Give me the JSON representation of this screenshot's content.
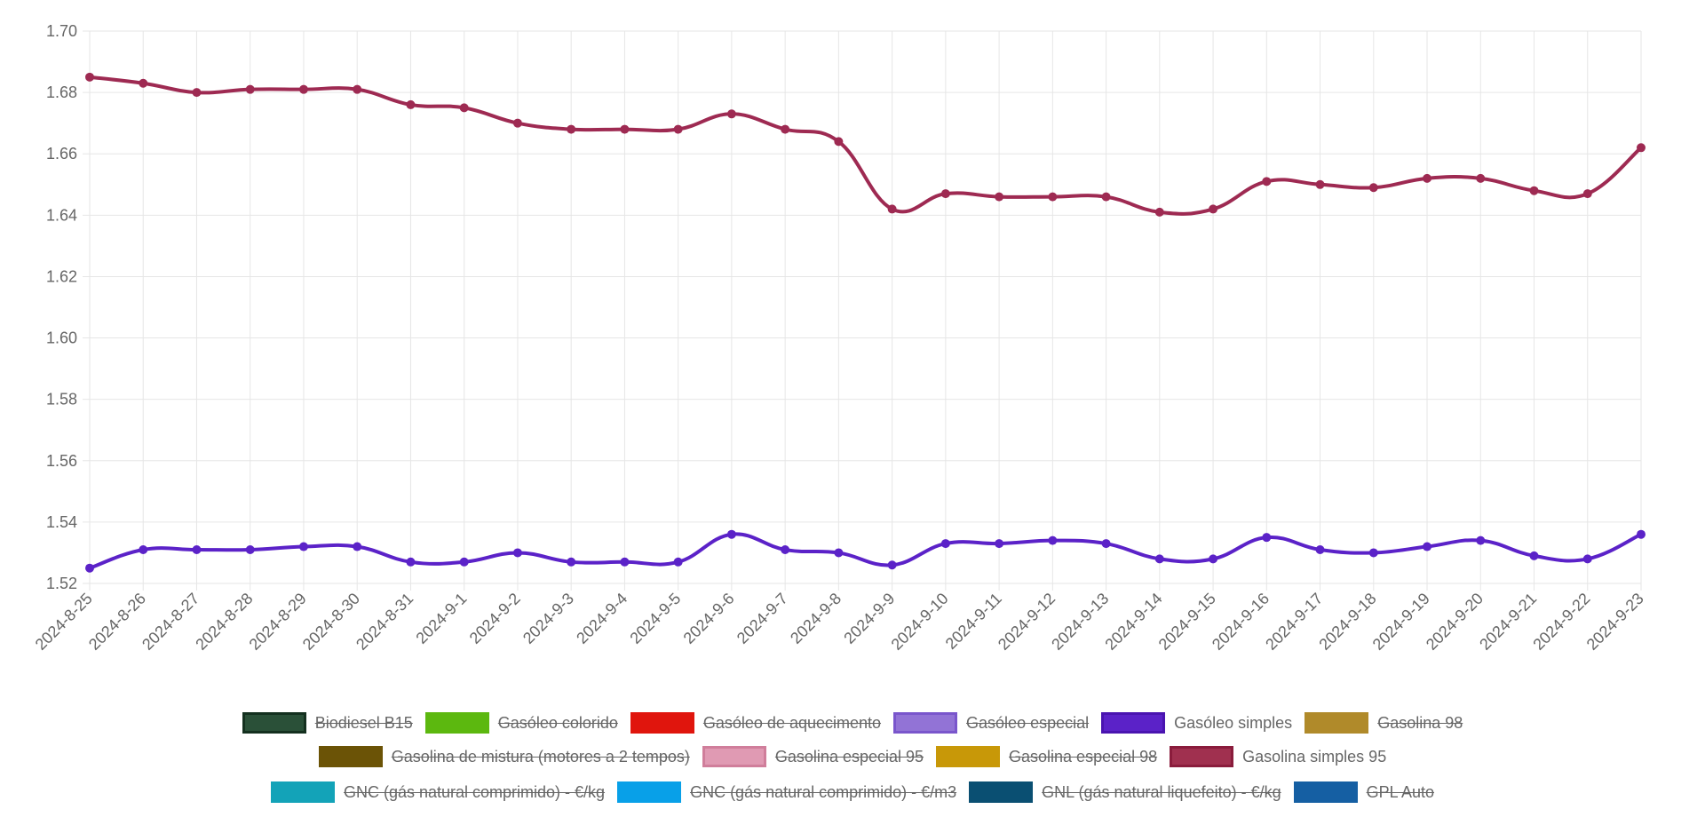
{
  "chart_data": {
    "type": "line",
    "title": "",
    "xlabel": "",
    "ylabel": "",
    "ylim": [
      1.52,
      1.7
    ],
    "yticks": [
      "1.70",
      "1.68",
      "1.66",
      "1.64",
      "1.62",
      "1.60",
      "1.58",
      "1.56",
      "1.54",
      "1.52"
    ],
    "grid": true,
    "legend_position": "bottom",
    "categories": [
      "2024-8-25",
      "2024-8-26",
      "2024-8-27",
      "2024-8-28",
      "2024-8-29",
      "2024-8-30",
      "2024-8-31",
      "2024-9-1",
      "2024-9-2",
      "2024-9-3",
      "2024-9-4",
      "2024-9-5",
      "2024-9-6",
      "2024-9-7",
      "2024-9-8",
      "2024-9-9",
      "2024-9-10",
      "2024-9-11",
      "2024-9-12",
      "2024-9-13",
      "2024-9-14",
      "2024-9-15",
      "2024-9-16",
      "2024-9-17",
      "2024-9-18",
      "2024-9-19",
      "2024-9-20",
      "2024-9-21",
      "2024-9-22",
      "2024-9-23"
    ],
    "series": [
      {
        "name": "Gasolina simples 95",
        "color": "#9e2a52",
        "values": [
          1.685,
          1.683,
          1.68,
          1.681,
          1.681,
          1.681,
          1.676,
          1.675,
          1.67,
          1.668,
          1.668,
          1.668,
          1.673,
          1.668,
          1.664,
          1.642,
          1.647,
          1.646,
          1.646,
          1.646,
          1.641,
          1.642,
          1.651,
          1.65,
          1.649,
          1.652,
          1.652,
          1.648,
          1.647,
          1.662
        ]
      },
      {
        "name": "Gasóleo simples",
        "color": "#5b22c8",
        "values": [
          1.525,
          1.531,
          1.531,
          1.531,
          1.532,
          1.532,
          1.527,
          1.527,
          1.53,
          1.527,
          1.527,
          1.527,
          1.536,
          1.531,
          1.53,
          1.526,
          1.533,
          1.533,
          1.534,
          1.533,
          1.528,
          1.528,
          1.535,
          1.531,
          1.53,
          1.532,
          1.534,
          1.529,
          1.528,
          1.536
        ]
      }
    ],
    "legend": [
      [
        {
          "label": "Biodiesel B15",
          "color": "#2a5038",
          "border": "#14301f",
          "hidden": true
        },
        {
          "label": "Gasóleo colorido",
          "color": "#5cb80f",
          "border": "#5cb80f",
          "hidden": true
        },
        {
          "label": "Gasóleo de aquecimento",
          "color": "#e0150d",
          "border": "#e0150d",
          "hidden": true
        },
        {
          "label": "Gasóleo especial",
          "color": "#9273d6",
          "border": "#7a56cc",
          "hidden": true
        },
        {
          "label": "Gasóleo simples",
          "color": "#5b22c8",
          "border": "#4a14b0",
          "hidden": false
        },
        {
          "label": "Gasolina 98",
          "color": "#b08a2a",
          "border": "#b08a2a",
          "hidden": true
        }
      ],
      [
        {
          "label": "Gasolina de mistura (motores a 2 tempos)",
          "color": "#6b5306",
          "border": "#6b5306",
          "hidden": true
        },
        {
          "label": "Gasolina especial 95",
          "color": "#e09ab3",
          "border": "#d07e9b",
          "hidden": true
        },
        {
          "label": "Gasolina especial 98",
          "color": "#c89808",
          "border": "#c89808",
          "hidden": true
        },
        {
          "label": "Gasolina simples 95",
          "color": "#a0304f",
          "border": "#8a1c3c",
          "hidden": false
        }
      ],
      [
        {
          "label": "GNC (gás natural comprimido) - €/kg",
          "color": "#13a3b8",
          "border": "#13a3b8",
          "hidden": true
        },
        {
          "label": "GNC (gás natural comprimido) - €/m3",
          "color": "#08a0e8",
          "border": "#08a0e8",
          "hidden": true
        },
        {
          "label": "GNL (gás natural liquefeito) - €/kg",
          "color": "#0a4f72",
          "border": "#0a4f72",
          "hidden": true
        },
        {
          "label": "GPL Auto",
          "color": "#155fa3",
          "border": "#155fa3",
          "hidden": true
        }
      ]
    ]
  }
}
